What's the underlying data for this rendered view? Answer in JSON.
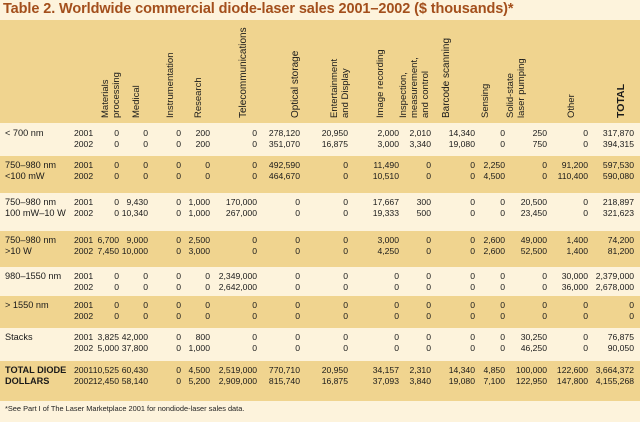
{
  "title": "Table 2. Worldwide commercial diode-laser sales 2001–2002 ($ thousands)*",
  "columns": [
    "Materials processing",
    "Medical",
    "Instrumentation",
    "Research",
    "Telecommunications",
    "Optical storage",
    "Entertainment and Display",
    "Image recording",
    "Inspection, measurement, and control",
    "Barcode scanning",
    "Sensing",
    "Solid-state laser pumping",
    "Other",
    "TOTAL"
  ],
  "column_lines": [
    "Materials\nprocessing",
    "Medical",
    "Instrumentation",
    "Research",
    "Telecommunications",
    "Optical storage",
    "Entertainment\nand Display",
    "Image recording",
    "Inspection,\nmeasurement,\nand control",
    "Barcode scanning",
    "Sensing",
    "Solid-state\nlaser pumping",
    "Other",
    "TOTAL"
  ],
  "groups": [
    {
      "label": "< 700 nm",
      "rows": [
        {
          "year": "2001",
          "values": [
            "0",
            "0",
            "0",
            "200",
            "0",
            "278,120",
            "20,950",
            "2,000",
            "2,010",
            "14,340",
            "0",
            "250",
            "0",
            "317,870"
          ]
        },
        {
          "year": "2002",
          "values": [
            "0",
            "0",
            "0",
            "200",
            "0",
            "351,070",
            "16,875",
            "3,000",
            "3,340",
            "19,080",
            "0",
            "750",
            "0",
            "394,315"
          ]
        }
      ]
    },
    {
      "label": "750–980 nm\n<100 mW",
      "rows": [
        {
          "year": "2001",
          "values": [
            "0",
            "0",
            "0",
            "0",
            "0",
            "492,590",
            "0",
            "11,490",
            "0",
            "0",
            "2,250",
            "0",
            "91,200",
            "597,530"
          ]
        },
        {
          "year": "2002",
          "values": [
            "0",
            "0",
            "0",
            "0",
            "0",
            "464,670",
            "0",
            "10,510",
            "0",
            "0",
            "4,500",
            "0",
            "110,400",
            "590,080"
          ]
        }
      ]
    },
    {
      "label": "750–980 nm\n100 mW–10 W",
      "rows": [
        {
          "year": "2001",
          "values": [
            "0",
            "9,430",
            "0",
            "1,000",
            "170,000",
            "0",
            "0",
            "17,667",
            "300",
            "0",
            "0",
            "20,500",
            "0",
            "218,897"
          ]
        },
        {
          "year": "2002",
          "values": [
            "0",
            "10,340",
            "0",
            "1,000",
            "267,000",
            "0",
            "0",
            "19,333",
            "500",
            "0",
            "0",
            "23,450",
            "0",
            "321,623"
          ]
        }
      ]
    },
    {
      "label": "750–980 nm\n>10 W",
      "rows": [
        {
          "year": "2001",
          "values": [
            "6,700",
            "9,000",
            "0",
            "2,500",
            "0",
            "0",
            "0",
            "3,000",
            "0",
            "0",
            "2,600",
            "49,000",
            "1,400",
            "74,200"
          ]
        },
        {
          "year": "2002",
          "values": [
            "7,450",
            "10,000",
            "0",
            "3,000",
            "0",
            "0",
            "0",
            "4,250",
            "0",
            "0",
            "2,600",
            "52,500",
            "1,400",
            "81,200"
          ]
        }
      ]
    },
    {
      "label": "980–1550 nm",
      "rows": [
        {
          "year": "2001",
          "values": [
            "0",
            "0",
            "0",
            "0",
            "2,349,000",
            "0",
            "0",
            "0",
            "0",
            "0",
            "0",
            "0",
            "30,000",
            "2,379,000"
          ]
        },
        {
          "year": "2002",
          "values": [
            "0",
            "0",
            "0",
            "0",
            "2,642,000",
            "0",
            "0",
            "0",
            "0",
            "0",
            "0",
            "0",
            "36,000",
            "2,678,000"
          ]
        }
      ]
    },
    {
      "label": "> 1550 nm",
      "rows": [
        {
          "year": "2001",
          "values": [
            "0",
            "0",
            "0",
            "0",
            "0",
            "0",
            "0",
            "0",
            "0",
            "0",
            "0",
            "0",
            "0",
            "0"
          ]
        },
        {
          "year": "2002",
          "values": [
            "0",
            "0",
            "0",
            "0",
            "0",
            "0",
            "0",
            "0",
            "0",
            "0",
            "0",
            "0",
            "0",
            "0"
          ]
        }
      ]
    },
    {
      "label": "Stacks",
      "rows": [
        {
          "year": "2001",
          "values": [
            "3,825",
            "42,000",
            "0",
            "800",
            "0",
            "0",
            "0",
            "0",
            "0",
            "0",
            "0",
            "30,250",
            "0",
            "76,875"
          ]
        },
        {
          "year": "2002",
          "values": [
            "5,000",
            "37,800",
            "0",
            "1,000",
            "0",
            "0",
            "0",
            "0",
            "0",
            "0",
            "0",
            "46,250",
            "0",
            "90,050"
          ]
        }
      ]
    },
    {
      "label": "TOTAL DIODE\nDOLLARS",
      "bold": true,
      "rows": [
        {
          "year": "2001",
          "values": [
            "10,525",
            "60,430",
            "0",
            "4,500",
            "2,519,000",
            "770,710",
            "20,950",
            "34,157",
            "2,310",
            "14,340",
            "4,850",
            "100,000",
            "122,600",
            "3,664,372"
          ]
        },
        {
          "year": "2002",
          "values": [
            "12,450",
            "58,140",
            "0",
            "5,200",
            "2,909,000",
            "815,740",
            "16,875",
            "37,093",
            "3,840",
            "19,080",
            "7,100",
            "122,950",
            "147,800",
            "4,155,268"
          ]
        }
      ]
    }
  ],
  "footnote": "*See Part I of The Laser Marketplace 2001 for nondiode-laser sales data.",
  "colors": {
    "title": "#a34f1c",
    "band_tan": "#f0d48f",
    "band_cream": "#fdf3dc"
  }
}
